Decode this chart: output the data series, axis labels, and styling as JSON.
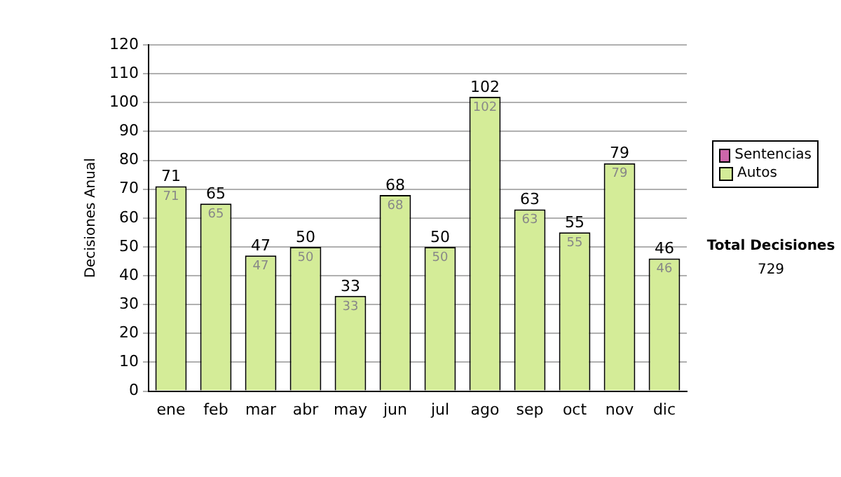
{
  "chart_data": {
    "type": "bar",
    "ylabel": "Decisiones Anual",
    "categories": [
      "ene",
      "feb",
      "mar",
      "abr",
      "may",
      "jun",
      "jul",
      "ago",
      "sep",
      "oct",
      "nov",
      "dic"
    ],
    "stacked": true,
    "series": [
      {
        "name": "Sentencias",
        "color": "#cc66aa",
        "values": [
          0,
          0,
          0,
          0,
          0,
          0,
          0,
          0,
          0,
          0,
          0,
          0
        ]
      },
      {
        "name": "Autos",
        "color": "#d4ec98",
        "values": [
          71,
          65,
          47,
          50,
          33,
          68,
          50,
          102,
          63,
          55,
          79,
          46
        ],
        "value_labels": [
          "71",
          "65",
          "47",
          "50",
          "33",
          "68",
          "50",
          "102",
          "63",
          "55",
          "79",
          "46"
        ]
      }
    ],
    "totals": [
      "71",
      "65",
      "47",
      "50",
      "33",
      "68",
      "50",
      "102",
      "63",
      "55",
      "79",
      "46"
    ],
    "ylim": [
      0,
      120
    ],
    "yticks": [
      0,
      10,
      20,
      30,
      40,
      50,
      60,
      70,
      80,
      90,
      100,
      110,
      120
    ],
    "grid": "y",
    "legend": "right",
    "annotations": [
      "Total Decisiones",
      "729"
    ]
  }
}
